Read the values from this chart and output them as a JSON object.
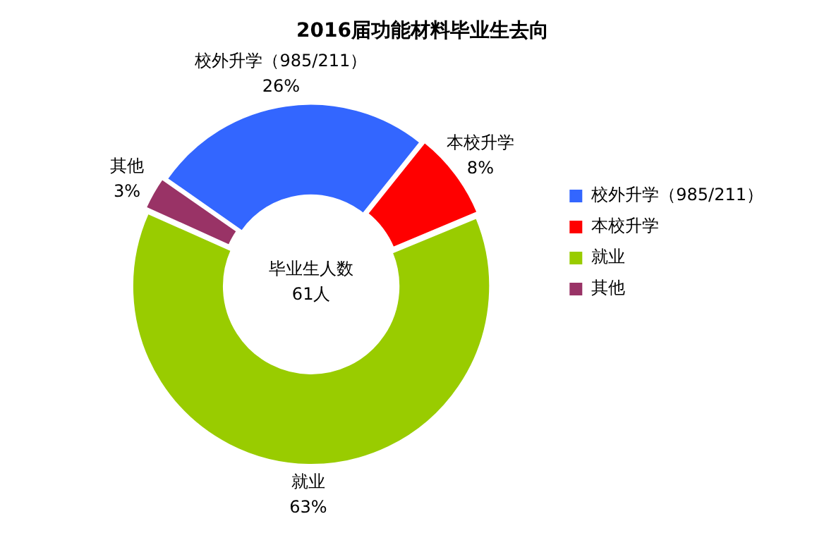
{
  "chart_data": {
    "type": "donut",
    "title": "2016届功能材料毕业生去向",
    "categories": [
      "校外升学（985/211）",
      "本校升学",
      "就业",
      "其他"
    ],
    "values": [
      26,
      8,
      63,
      3
    ],
    "value_labels": [
      "26%",
      "8%",
      "63%",
      "3%"
    ],
    "colors": [
      "#3366ff",
      "#ff0000",
      "#99cc00",
      "#993366"
    ],
    "legend": "right",
    "annotations": [
      "毕业生人数",
      "61人"
    ]
  }
}
